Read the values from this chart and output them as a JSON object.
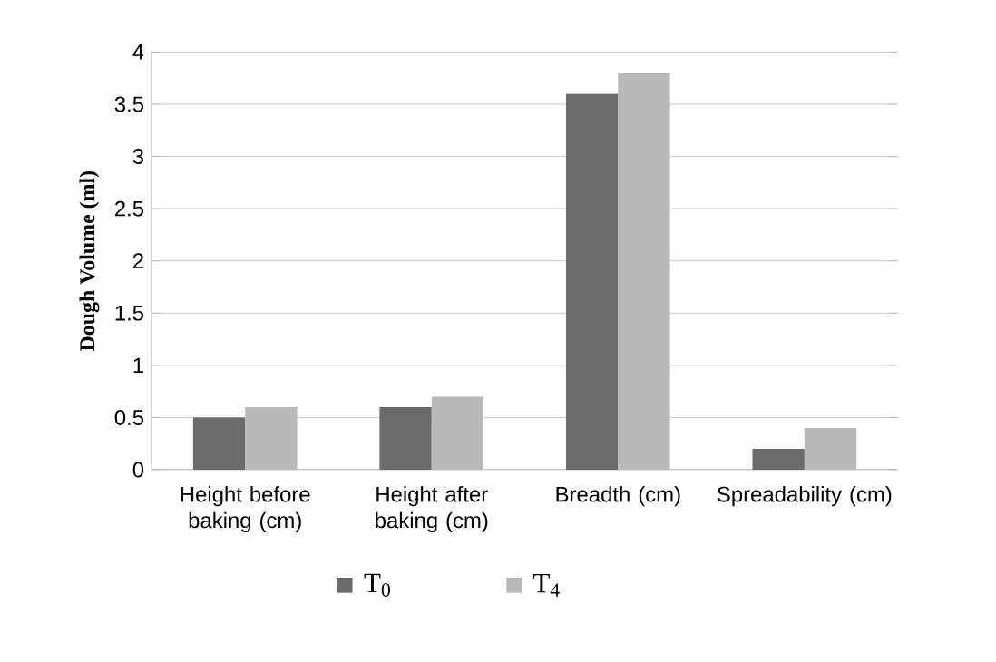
{
  "chart_data": {
    "type": "bar",
    "ylabel": "Dough Volume (ml)",
    "categories": [
      "Height before baking (cm)",
      "Height after baking (cm)",
      "Breadth  (cm)",
      "Spreadability (cm)"
    ],
    "series": [
      {
        "name": "T$_{0}$",
        "color": "#6b6b6b",
        "values": [
          0.5,
          0.6,
          3.6,
          0.2
        ]
      },
      {
        "name": "T$_{4}$",
        "color": "#b9b9b9",
        "values": [
          0.6,
          0.7,
          3.8,
          0.4
        ]
      }
    ],
    "ylim": [
      0,
      4
    ],
    "yticks": [
      0,
      0.5,
      1,
      1.5,
      2,
      2.5,
      3,
      3.5,
      4
    ],
    "grid": "y",
    "legend": "bottom"
  }
}
